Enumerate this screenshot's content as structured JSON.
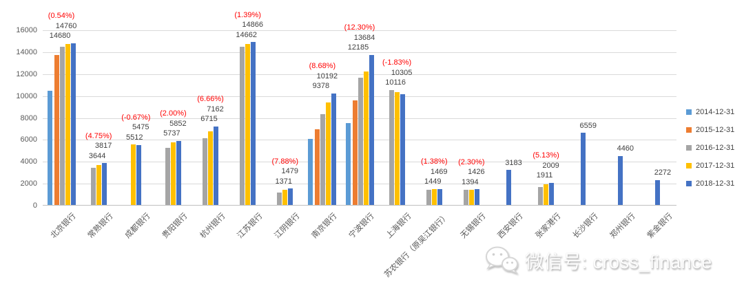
{
  "chart_data": {
    "type": "bar",
    "title": "",
    "xlabel": "",
    "ylabel": "",
    "grid": true,
    "legend_position": "right",
    "pct_color": "#FF0000",
    "value_label_color": "#404040",
    "axis_label_color": "#595959",
    "gridline_color": "#D9D9D9",
    "y_axis": {
      "min": 0,
      "max": 16000,
      "ticks": [
        0,
        2000,
        4000,
        6000,
        8000,
        10000,
        12000,
        14000,
        16000
      ]
    },
    "categories": [
      "北京银行",
      "常熟银行",
      "成都银行",
      "贵阳银行",
      "杭州银行",
      "江苏银行",
      "江阴银行",
      "南京银行",
      "宁波银行",
      "上海银行",
      "苏农银行（原吴江银行）",
      "无锡银行",
      "西安银行",
      "张家港行",
      "长沙银行",
      "郑州银行",
      "紫金银行"
    ],
    "series": [
      {
        "name": "2014-12-31",
        "color": "#5B9BD5",
        "values": [
          10400,
          null,
          null,
          null,
          null,
          null,
          null,
          6000,
          7450,
          null,
          null,
          null,
          null,
          null,
          null,
          null,
          null
        ]
      },
      {
        "name": "2015-12-31",
        "color": "#ED7D31",
        "values": [
          13700,
          null,
          null,
          null,
          null,
          null,
          null,
          6900,
          9550,
          null,
          null,
          null,
          null,
          null,
          null,
          null,
          null
        ]
      },
      {
        "name": "2016-12-31",
        "color": "#A5A5A5",
        "values": [
          14450,
          3400,
          null,
          5200,
          6100,
          14430,
          1130,
          8300,
          11600,
          10500,
          1400,
          1350,
          null,
          1650,
          null,
          null,
          null
        ]
      },
      {
        "name": "2017-12-31",
        "color": "#FFC000",
        "values": [
          14680,
          3644,
          5512,
          5737,
          6715,
          14662,
          1371,
          9378,
          12185,
          10305,
          1449,
          1394,
          null,
          1911,
          null,
          null,
          null
        ]
      },
      {
        "name": "2018-12-31",
        "color": "#4472C4",
        "values": [
          14760,
          3817,
          5475,
          5852,
          7162,
          14866,
          1479,
          10192,
          13684,
          10116,
          1469,
          1426,
          3183,
          2009,
          6559,
          4460,
          2272
        ]
      }
    ],
    "point_labels": [
      {
        "pct": "(0.54%)",
        "values": [
          "14760",
          "14680"
        ]
      },
      {
        "pct": "(4.75%)",
        "values": [
          "3817",
          "3644"
        ]
      },
      {
        "pct": "(-0.67%)",
        "values": [
          "5475",
          "5512"
        ]
      },
      {
        "pct": "(2.00%)",
        "values": [
          "5852",
          "5737"
        ]
      },
      {
        "pct": "(6.66%)",
        "values": [
          "7162",
          "6715"
        ]
      },
      {
        "pct": "(1.39%)",
        "values": [
          "14866",
          "14662"
        ]
      },
      {
        "pct": "(7.88%)",
        "values": [
          "1479",
          "1371"
        ]
      },
      {
        "pct": "(8.68%)",
        "values": [
          "10192",
          "9378"
        ]
      },
      {
        "pct": "(12.30%)",
        "values": [
          "13684",
          "12185"
        ]
      },
      {
        "pct": "(-1.83%)",
        "values": [
          "10305",
          "10116"
        ]
      },
      {
        "pct": "(1.38%)",
        "values": [
          "1469",
          "1449"
        ]
      },
      {
        "pct": "(2.30%)",
        "values": [
          "1426",
          "1394"
        ]
      },
      {
        "pct": null,
        "values": [
          "3183"
        ]
      },
      {
        "pct": "(5.13%)",
        "values": [
          "2009",
          "1911"
        ]
      },
      {
        "pct": null,
        "values": [
          "6559"
        ]
      },
      {
        "pct": null,
        "values": [
          "4460"
        ]
      },
      {
        "pct": null,
        "values": [
          "2272"
        ]
      }
    ]
  },
  "legend": {
    "items": [
      {
        "label": "2014-12-31",
        "color": "#5B9BD5"
      },
      {
        "label": "2015-12-31",
        "color": "#ED7D31"
      },
      {
        "label": "2016-12-31",
        "color": "#A5A5A5"
      },
      {
        "label": "2017-12-31",
        "color": "#FFC000"
      },
      {
        "label": "2018-12-31",
        "color": "#4472C4"
      }
    ]
  },
  "watermark": {
    "icon": "wechat-icon",
    "text": "微信号: cross_finance"
  }
}
